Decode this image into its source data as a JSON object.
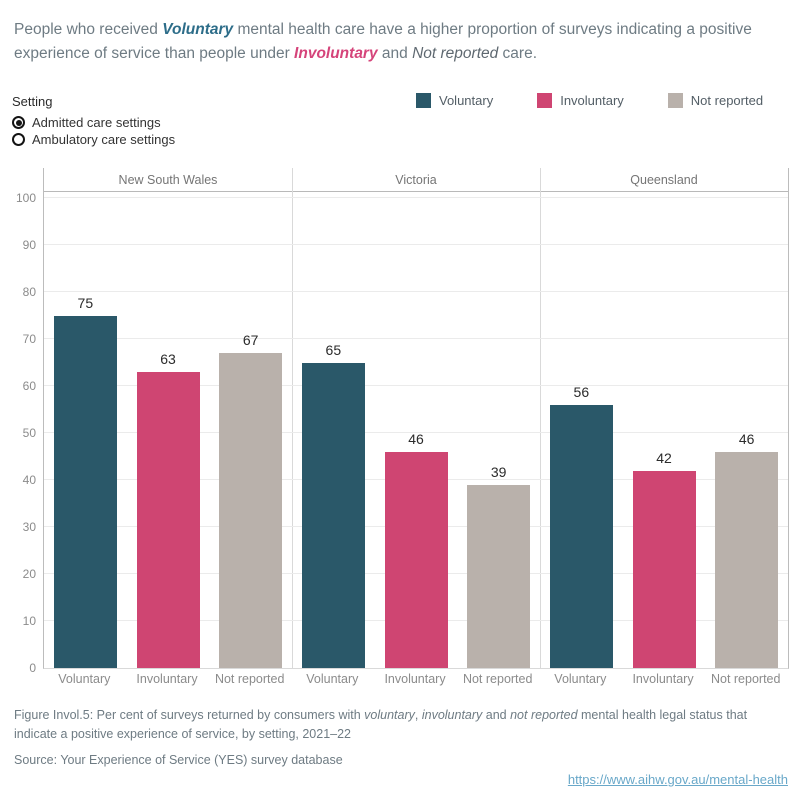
{
  "title": {
    "segments": [
      {
        "text": "People who received ",
        "style": "normal"
      },
      {
        "text": "Voluntary",
        "style": "voluntary"
      },
      {
        "text": " mental health care have a higher proportion of surveys indicating a positive experience of service than people under ",
        "style": "normal"
      },
      {
        "text": "Involuntary",
        "style": "involuntary"
      },
      {
        "text": " and ",
        "style": "normal"
      },
      {
        "text": "Not reported",
        "style": "notreported"
      },
      {
        "text": " care.",
        "style": "normal"
      }
    ]
  },
  "setting_control": {
    "label": "Setting",
    "options": [
      {
        "label": "Admitted care settings",
        "selected": true
      },
      {
        "label": "Ambulatory care settings",
        "selected": false
      }
    ]
  },
  "legend": {
    "position": "top-right",
    "items": [
      {
        "label": "Voluntary",
        "color": "#2a5869"
      },
      {
        "label": "Involuntary",
        "color": "#cf4572"
      },
      {
        "label": "Not reported",
        "color": "#b9b1ab"
      }
    ]
  },
  "chart_data": {
    "type": "bar",
    "title": "",
    "panels": [
      "New South Wales",
      "Victoria",
      "Queensland"
    ],
    "categories": [
      "Voluntary",
      "Involuntary",
      "Not reported"
    ],
    "series": [
      {
        "panel": "New South Wales",
        "values": [
          75,
          63,
          67
        ]
      },
      {
        "panel": "Victoria",
        "values": [
          65,
          46,
          39
        ]
      },
      {
        "panel": "Queensland",
        "values": [
          56,
          42,
          46
        ]
      }
    ],
    "colors": [
      "#2a5869",
      "#cf4572",
      "#b9b1ab"
    ],
    "ylabel": "",
    "xlabel": "",
    "ylim": [
      0,
      100
    ],
    "yticks": [
      0,
      10,
      20,
      30,
      40,
      50,
      60,
      70,
      80,
      90,
      100
    ],
    "grid": true,
    "value_labels": true
  },
  "caption": {
    "segments": [
      {
        "text": "Figure Invol.5: Per cent of surveys returned by consumers with ",
        "style": "normal"
      },
      {
        "text": "voluntary",
        "style": "italic"
      },
      {
        "text": ", ",
        "style": "normal"
      },
      {
        "text": "involuntary",
        "style": "italic"
      },
      {
        "text": " and ",
        "style": "normal"
      },
      {
        "text": "not reported",
        "style": "italic"
      },
      {
        "text": " mental health legal status that indicate a positive experience of service, by setting, 2021–22",
        "style": "normal"
      }
    ]
  },
  "source": "Source: Your Experience of Service (YES) survey database",
  "link": {
    "url": "https://www.aihw.gov.au/mental-health"
  },
  "colors": {
    "voluntary_teal": "#2a5869",
    "involuntary_pink": "#cf4572",
    "not_reported_gray": "#b9b1ab",
    "body_text_gray": "#6e7b83",
    "axis_text_gray": "#8b8b8b",
    "link_blue": "#69a8c9"
  }
}
